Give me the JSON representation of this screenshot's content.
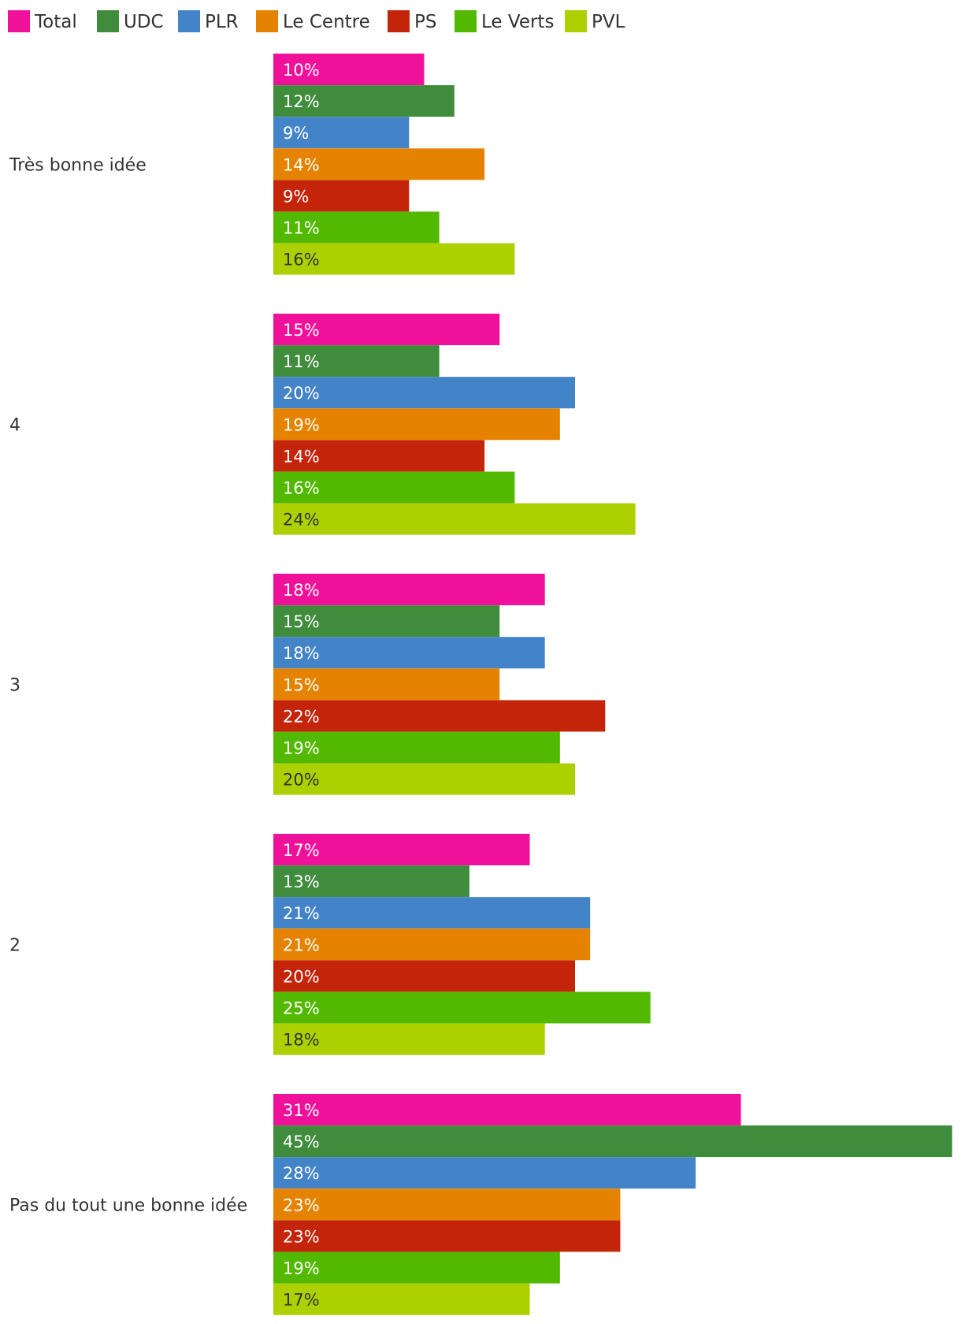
{
  "chart_data": {
    "type": "bar",
    "orientation": "horizontal",
    "title": "",
    "xlabel": "",
    "ylabel": "",
    "xlim": [
      0,
      45
    ],
    "grid": false,
    "legend_position": "top-left",
    "categories": [
      "Très bonne idée",
      "4",
      "3",
      "2",
      "Pas du tout une bonne idée"
    ],
    "series": [
      {
        "name": "Total",
        "color": "#f0119a",
        "label_color": "#ffffff",
        "values": [
          10,
          15,
          18,
          17,
          31
        ],
        "labels": [
          "10%",
          "15%",
          "18%",
          "17%",
          "31%"
        ]
      },
      {
        "name": "UDC",
        "color": "#3f8c3d",
        "label_color": "#ffffff",
        "values": [
          12,
          11,
          15,
          13,
          45
        ],
        "labels": [
          "12%",
          "11%",
          "15%",
          "13%",
          "45%"
        ]
      },
      {
        "name": "PLR",
        "color": "#4383c7",
        "label_color": "#ffffff",
        "values": [
          9,
          20,
          18,
          21,
          28
        ],
        "labels": [
          "9%",
          "20%",
          "18%",
          "21%",
          "28%"
        ]
      },
      {
        "name": "Le Centre",
        "color": "#e58300",
        "label_color": "#ffffff",
        "values": [
          14,
          19,
          15,
          21,
          23
        ],
        "labels": [
          "14%",
          "19%",
          "15%",
          "21%",
          "23%"
        ]
      },
      {
        "name": "PS",
        "color": "#c4240a",
        "label_color": "#ffffff",
        "values": [
          9,
          14,
          22,
          20,
          23
        ],
        "labels": [
          "9%",
          "14%",
          "22%",
          "20%",
          "23%"
        ]
      },
      {
        "name": "Le Verts",
        "color": "#52b900",
        "label_color": "#ffffff",
        "values": [
          11,
          16,
          19,
          25,
          19
        ],
        "labels": [
          "11%",
          "16%",
          "19%",
          "25%",
          "19%"
        ]
      },
      {
        "name": "PVL",
        "color": "#acd000",
        "label_color": "#333333",
        "values": [
          16,
          24,
          20,
          18,
          17
        ],
        "labels": [
          "16%",
          "24%",
          "20%",
          "18%",
          "17%"
        ]
      }
    ]
  }
}
